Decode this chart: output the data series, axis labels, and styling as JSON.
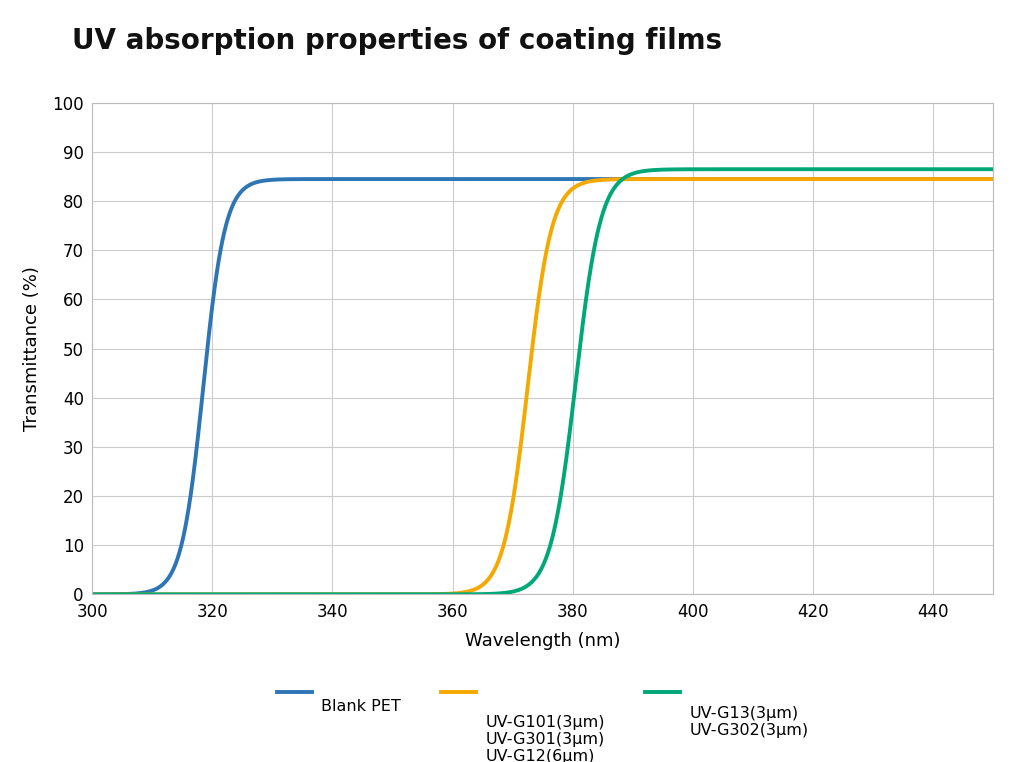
{
  "title": "UV absorption properties of coating films",
  "xlabel": "Wavelength (nm)",
  "ylabel": "Transmittance (%)",
  "xlim": [
    300,
    450
  ],
  "ylim": [
    0,
    100
  ],
  "xticks": [
    300,
    320,
    340,
    360,
    380,
    400,
    420,
    440
  ],
  "yticks": [
    0,
    10,
    20,
    30,
    40,
    50,
    60,
    70,
    80,
    90,
    100
  ],
  "series": [
    {
      "label": "Blank PET",
      "color": "#2E75B6",
      "midpoint": 318.5,
      "steepness": 0.55,
      "max_val": 84.5
    },
    {
      "label": "UV-G101(3μm)\nUV-G301(3μm)\nUV-G12(6μm)",
      "color": "#F5A800",
      "midpoint": 372.5,
      "steepness": 0.5,
      "max_val": 84.5
    },
    {
      "label": "UV-G13(3μm)\nUV-G302(3μm)",
      "color": "#00A878",
      "midpoint": 380.5,
      "steepness": 0.48,
      "max_val": 86.5
    }
  ],
  "background_color": "#ffffff",
  "grid_color": "#cccccc",
  "title_fontsize": 20,
  "label_fontsize": 13,
  "tick_fontsize": 12,
  "legend_fontsize": 11.5,
  "line_width": 2.8
}
